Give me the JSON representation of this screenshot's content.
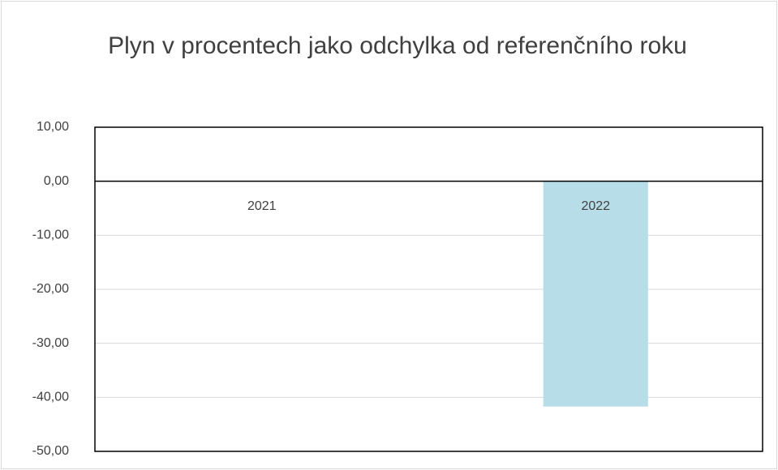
{
  "chart_data": {
    "type": "bar",
    "title": "Plyn v procentech jako odchylka od referenčního roku",
    "categories": [
      "2021",
      "2022"
    ],
    "values": [
      0,
      -41.7
    ],
    "color": "#b7dde8",
    "ylim": [
      -50,
      10
    ],
    "yticks": [
      {
        "value": -50,
        "label": "-50,00"
      },
      {
        "value": -40,
        "label": "-40,00"
      },
      {
        "value": -30,
        "label": "-30,00"
      },
      {
        "value": -20,
        "label": "-20,00"
      },
      {
        "value": -10,
        "label": "-10,00"
      },
      {
        "value": 0,
        "label": "0,00"
      },
      {
        "value": 10,
        "label": "10,00"
      }
    ],
    "grid": true
  }
}
